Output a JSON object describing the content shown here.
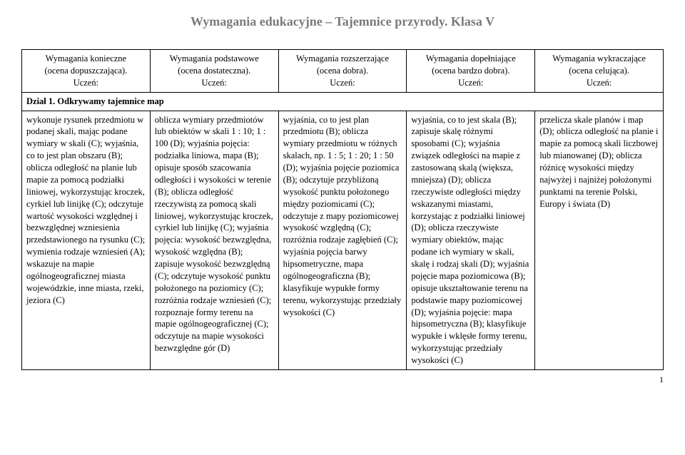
{
  "title": "Wymagania edukacyjne – Tajemnice przyrody. Klasa V",
  "columns": [
    {
      "line1": "Wymagania konieczne",
      "line2": "(ocena dopuszczająca).",
      "line3": "Uczeń:"
    },
    {
      "line1": "Wymagania podstawowe",
      "line2": "(ocena dostateczna).",
      "line3": "Uczeń:"
    },
    {
      "line1": "Wymagania rozszerzające",
      "line2": "(ocena dobra).",
      "line3": "Uczeń:"
    },
    {
      "line1": "Wymagania dopełniające",
      "line2": "(ocena bardzo dobra).",
      "line3": "Uczeń:"
    },
    {
      "line1": "Wymagania wykraczające",
      "line2": "(ocena celująca).",
      "line3": "Uczeń:"
    }
  ],
  "section": "Dział 1. Odkrywamy tajemnice map",
  "cells": [
    "wykonuje rysunek przedmiotu w podanej skali, mając podane wymiary w skali (C); wyjaśnia, co to jest plan obszaru (B); oblicza odległość na planie lub mapie za pomocą podziałki liniowej, wykorzystując kroczek, cyrkiel lub linijkę (C); odczytuje wartość wysokości względnej i bezwzględnej wzniesienia przedstawionego na rysunku (C); wymienia rodzaje wzniesień (A); wskazuje na mapie ogólnogeograficznej miasta wojewódzkie, inne miasta, rzeki, jeziora (C)",
    "oblicza wymiary przedmiotów lub obiektów w skali 1 : 10; 1 : 100 (D); wyjaśnia pojęcia: podziałka liniowa, mapa (B); opisuje sposób szacowania odległości i wysokości w terenie (B); oblicza odległość rzeczywistą za pomocą skali liniowej, wykorzystując kroczek, cyrkiel lub linijkę (C); wyjaśnia pojęcia: wysokość bezwzględna, wysokość względna (B); zapisuje wysokość bezwzględną (C); odczytuje wysokość punktu położonego na poziomicy (C); rozróżnia rodzaje wzniesień (C); rozpoznaje formy terenu na mapie ogólnogeograficznej (C); odczytuje na mapie wysokości bezwzględne gór (D)",
    "wyjaśnia, co to jest plan przedmiotu (B); oblicza wymiary przedmiotu w różnych skalach, np. 1 : 5; 1 : 20; 1 : 50 (D); wyjaśnia pojęcie poziomica (B); odczytuje przybliżoną wysokość punktu położonego między poziomicami (C); odczytuje z mapy poziomicowej wysokość względną (C); rozróżnia rodzaje zagłębień (C); wyjaśnia pojęcia barwy hipsometryczne, mapa ogólnogeograficzna (B); klasyfikuje wypukłe formy terenu, wykorzystując przedziały wysokości (C)",
    "wyjaśnia, co to jest skala (B); zapisuje skalę różnymi sposobami (C); wyjaśnia związek odległości na mapie z zastosowaną skalą (większa, mniejsza) (D); oblicza rzeczywiste odległości między wskazanymi miastami, korzystając z podziałki liniowej (D); oblicza rzeczywiste wymiary obiektów, mając podane ich wymiary w skali, skalę i rodzaj skali (D); wyjaśnia pojęcie mapa poziomicowa (B); opisuje ukształtowanie terenu na podstawie mapy poziomicowej (D); wyjaśnia pojęcie: mapa hipsometryczna (B); klasyfikuje wypukłe i wklęsłe formy terenu, wykorzystując przedziały wysokości (C)",
    "przelicza skale planów i map (D); oblicza odległość na planie i mapie za pomocą skali liczbowej lub mianowanej (D); oblicza różnicę wysokości między najwyżej i najniżej położonymi punktami na terenie Polski, Europy i świata (D)"
  ],
  "pageNumber": "1"
}
